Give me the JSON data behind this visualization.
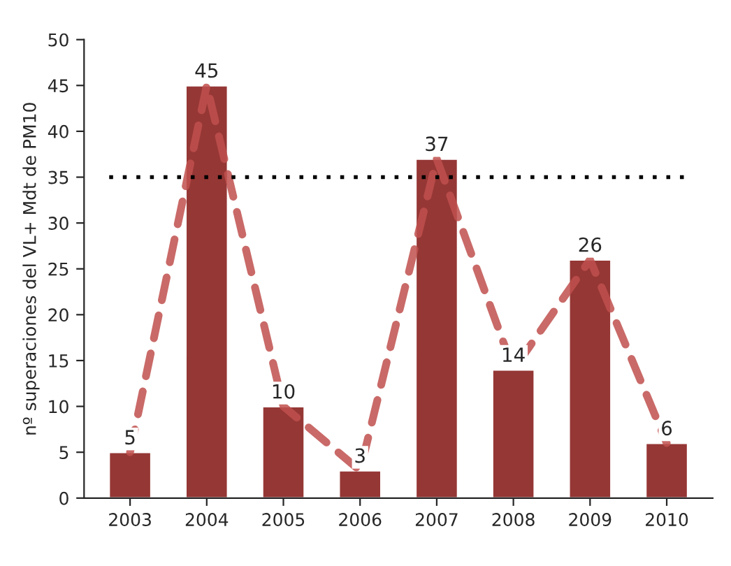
{
  "chart_data": {
    "type": "bar",
    "ylabel": "nº superaciones del VL+ Mdt de PM10",
    "categories": [
      "2003",
      "2004",
      "2005",
      "2006",
      "2007",
      "2008",
      "2009",
      "2010"
    ],
    "series": [
      {
        "color": "#953735",
        "values": [
          5,
          45,
          10,
          3,
          37,
          14,
          26,
          6
        ],
        "value_labels": [
          "5",
          "45",
          "10",
          "3",
          "37",
          "14",
          "26",
          "6"
        ]
      },
      {
        "type": "line",
        "color": "#c0504d",
        "line_style": "dashed",
        "values": [
          5,
          45,
          10,
          3,
          37,
          14,
          26,
          6
        ]
      }
    ],
    "ylim": [
      0,
      50
    ],
    "yticks": [
      0,
      5,
      10,
      15,
      20,
      25,
      30,
      35,
      40,
      45,
      50
    ],
    "ref_lines": [
      {
        "axis": "y",
        "value": 35,
        "color": "#000000",
        "line_style": "dotted"
      }
    ],
    "grid": false,
    "legend": false
  }
}
